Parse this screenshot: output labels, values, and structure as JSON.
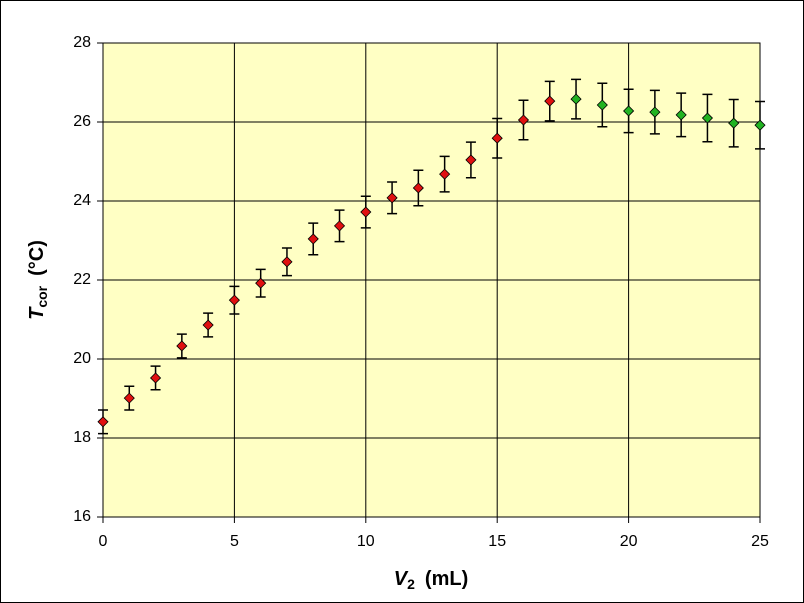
{
  "chart_data": {
    "type": "scatter",
    "x_label": {
      "main": "V",
      "sub": "2",
      "unit": "(mL)"
    },
    "y_label": {
      "main": "T",
      "sub": "cor",
      "unit": "(°C)"
    },
    "xlim": [
      0,
      25
    ],
    "xticks": [
      0,
      5,
      10,
      15,
      20,
      25
    ],
    "ylim": [
      16,
      28
    ],
    "yticks": [
      16,
      18,
      20,
      22,
      24,
      26,
      28
    ],
    "grid": true,
    "background": "#ffffc4",
    "series": [
      {
        "color": "#e01010",
        "x": [
          0,
          1,
          2,
          3,
          4,
          5,
          6,
          7,
          8,
          9,
          10,
          11,
          12,
          13,
          14,
          15,
          16,
          17
        ],
        "values": [
          18.41,
          19.01,
          19.52,
          20.33,
          20.86,
          21.49,
          21.92,
          22.46,
          23.04,
          23.37,
          23.72,
          24.08,
          24.33,
          24.68,
          25.04,
          25.59,
          26.05,
          26.53
        ],
        "errors": [
          0.3,
          0.3,
          0.3,
          0.3,
          0.3,
          0.35,
          0.35,
          0.35,
          0.4,
          0.4,
          0.4,
          0.4,
          0.45,
          0.45,
          0.45,
          0.5,
          0.5,
          0.5
        ]
      },
      {
        "color": "#22b322",
        "x": [
          18,
          19,
          20,
          21,
          22,
          23,
          24,
          25
        ],
        "values": [
          26.58,
          26.43,
          26.28,
          26.25,
          26.18,
          26.1,
          25.97,
          25.92
        ],
        "errors": [
          0.5,
          0.55,
          0.55,
          0.55,
          0.55,
          0.6,
          0.6,
          0.6
        ]
      }
    ]
  }
}
